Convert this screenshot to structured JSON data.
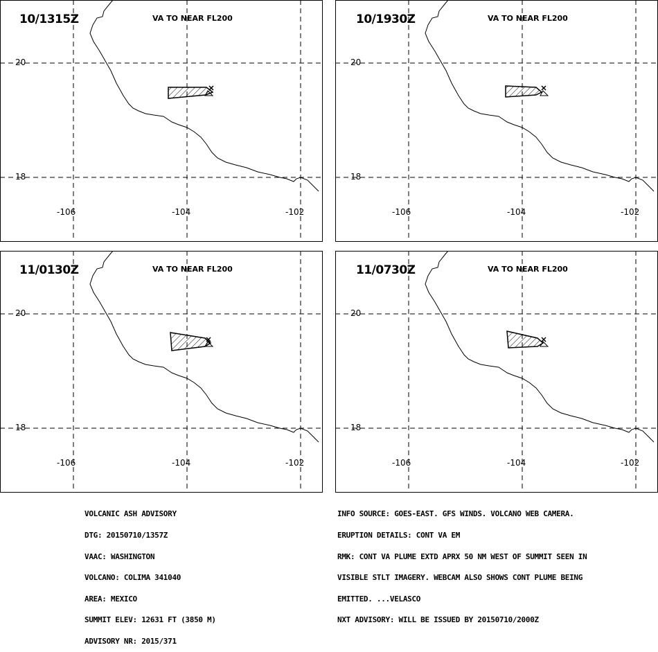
{
  "heading": "VA TO NEAR FL200",
  "lat_labels": [
    "20",
    "18"
  ],
  "lon_labels": [
    "-106",
    "-104",
    "-102"
  ],
  "panels": [
    {
      "timestamp": "10/1315Z",
      "heading": "VA TO NEAR FL200"
    },
    {
      "timestamp": "10/1930Z",
      "heading": "VA TO NEAR FL200"
    },
    {
      "timestamp": "11/0130Z",
      "heading": "VA TO NEAR FL200"
    },
    {
      "timestamp": "11/0730Z",
      "heading": "VA TO NEAR FL200"
    }
  ],
  "advisory_left": [
    "VOLCANIC ASH ADVISORY",
    "DTG: 20150710/1357Z",
    "VAAC: WASHINGTON",
    "VOLCANO: COLIMA 341040",
    "AREA: MEXICO",
    "SUMMIT ELEV: 12631 FT (3850 M)",
    "ADVISORY NR: 2015/371"
  ],
  "advisory_right": [
    "INFO SOURCE: GOES-EAST. GFS WINDS. VOLCANO WEB CAMERA.",
    "ERUPTION DETAILS: CONT VA EM",
    "RMK: CONT VA PLUME EXTD APRX 50 NM WEST OF SUMMIT SEEN IN",
    "VISIBLE STLT IMAGERY. WEBCAM ALSO SHOWS CONT PLUME BEING",
    "EMITTED. ...VELASCO",
    "NXT ADVISORY: WILL BE ISSUED BY 20150710/2000Z"
  ]
}
